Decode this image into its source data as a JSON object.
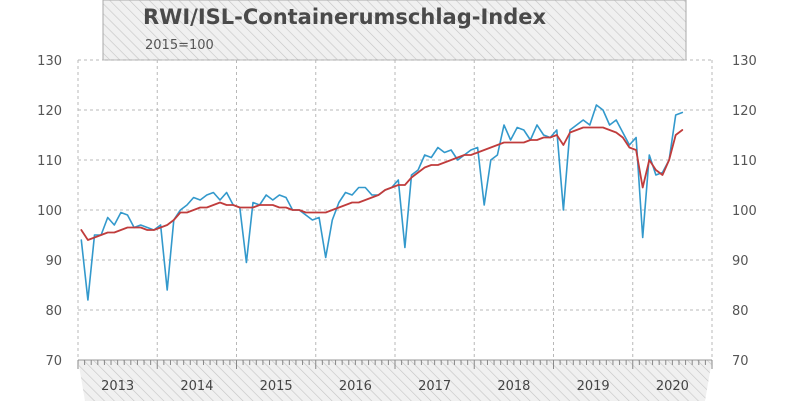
{
  "chart_data": {
    "type": "line",
    "title": "RWI/ISL-Containerumschlag-Index",
    "subtitle": "2015=100",
    "ylim": [
      70,
      130
    ],
    "yticks": [
      "70",
      "80",
      "90",
      "100",
      "110",
      "120",
      "130"
    ],
    "years": [
      "2013",
      "2014",
      "2015",
      "2016",
      "2017",
      "2018",
      "2019",
      "2020"
    ],
    "x_start": "2013-01",
    "x_end": "2020-12",
    "grid": true,
    "colors": {
      "series1": "#3399cc",
      "series2": "#c03c3c"
    },
    "series": [
      {
        "values": [
          94,
          82,
          95,
          95,
          98.5,
          97,
          99.5,
          99,
          96.5,
          97,
          96.5,
          96,
          97,
          84,
          98,
          100,
          101,
          102.5,
          102,
          103,
          103.5,
          102,
          103.5,
          101,
          100.5,
          89.5,
          101.5,
          101,
          103,
          102,
          103,
          102.5,
          100,
          100,
          99,
          98,
          98.5,
          90.5,
          98,
          101.5,
          103.5,
          103,
          104.5,
          104.5,
          103,
          103,
          104,
          104.5,
          106,
          92.5,
          107,
          108,
          111,
          110.5,
          112.5,
          111.5,
          112,
          110,
          111,
          112,
          112.5,
          101,
          110,
          111,
          117,
          114,
          116.5,
          116,
          114,
          117,
          115,
          114.5,
          116,
          100,
          116,
          117,
          118,
          117,
          121,
          120,
          117,
          118,
          115.5,
          113,
          114.5,
          94.5,
          111,
          107,
          107.5,
          110,
          119,
          119.5
        ],
        "values_2": [
          96,
          94,
          94.5,
          95,
          95.5,
          95.5,
          96,
          96.5,
          96.5,
          96.5,
          96,
          96,
          96.5,
          97,
          98,
          99.5,
          99.5,
          100,
          100.5,
          100.5,
          101,
          101.5,
          101,
          101,
          100.5,
          100.5,
          100.5,
          101,
          101,
          101,
          100.5,
          100.5,
          100,
          100,
          99.5,
          99.5,
          99.5,
          99.5,
          100,
          100.5,
          101,
          101.5,
          101.5,
          102,
          102.5,
          103,
          104,
          104.5,
          105,
          105,
          106.5,
          107.5,
          108.5,
          109,
          109,
          109.5,
          110,
          110.5,
          111,
          111,
          111.5,
          112,
          112.5,
          113,
          113.5,
          113.5,
          113.5,
          113.5,
          114,
          114,
          114.5,
          114.5,
          115,
          113,
          115.5,
          116,
          116.5,
          116.5,
          116.5,
          116.5,
          116,
          115.5,
          114.5,
          112.5,
          112,
          104.5,
          110,
          108,
          107,
          110,
          115,
          116
        ]
      },
      {
        "values": []
      }
    ]
  }
}
